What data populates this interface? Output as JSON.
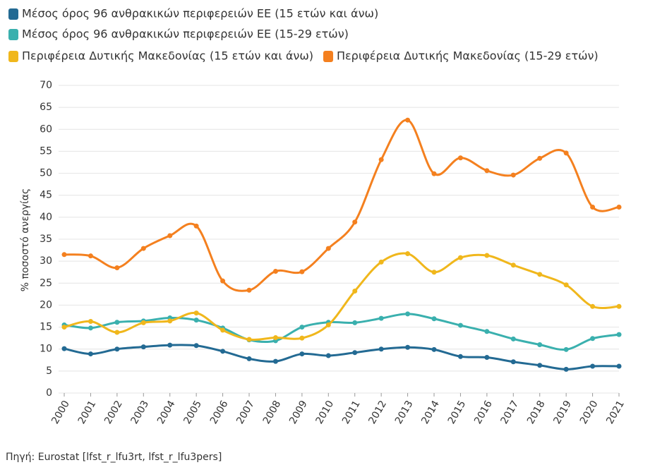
{
  "chart_data": {
    "type": "line",
    "y_label": "% ποσοστό ανεργίας",
    "source": "Πηγή: Eurostat [lfst_r_lfu3rt, lfst_r_lfu3pers]",
    "categories": [
      "2000",
      "2001",
      "2002",
      "2003",
      "2004",
      "2005",
      "2006",
      "2007",
      "2008",
      "2009",
      "2010",
      "2011",
      "2012",
      "2013",
      "2014",
      "2015",
      "2016",
      "2017",
      "2018",
      "2019",
      "2020",
      "2021"
    ],
    "series": [
      {
        "name": "Μέσος όρος 96 ανθρακικών περιφερειών ΕΕ (15 ετών και άνω)",
        "color": "#236a93",
        "values": [
          10.1,
          8.9,
          10.0,
          10.5,
          10.9,
          10.8,
          9.5,
          7.8,
          7.2,
          8.9,
          8.5,
          9.2,
          10.0,
          10.4,
          9.9,
          8.3,
          8.1,
          7.1,
          6.3,
          5.4,
          6.1,
          6.1
        ]
      },
      {
        "name": "Μέσος όρος 96 ανθρακικών περιφερειών ΕΕ (15-29 ετών)",
        "color": "#3ab0ae",
        "values": [
          15.5,
          14.8,
          16.1,
          16.4,
          17.1,
          16.6,
          14.8,
          12.1,
          11.9,
          15.0,
          16.1,
          16.0,
          17.0,
          18.0,
          16.9,
          15.4,
          14.0,
          12.3,
          11.0,
          9.9,
          12.4,
          13.3
        ]
      },
      {
        "name": "Περιφέρεια Δυτικής Μακεδονίας (15 ετών και άνω)",
        "color": "#f0b71c",
        "values": [
          15.0,
          16.3,
          13.8,
          16.0,
          16.4,
          18.2,
          14.3,
          12.2,
          12.6,
          12.5,
          15.5,
          23.2,
          29.8,
          31.7,
          27.5,
          30.8,
          31.3,
          29.1,
          27.0,
          24.6,
          19.7,
          19.7
        ]
      },
      {
        "name": "Περιφέρεια Δυτικής Μακεδονίας (15-29 ετών)",
        "color": "#f4801f",
        "values": [
          31.5,
          31.2,
          28.5,
          32.9,
          35.8,
          38.0,
          25.5,
          23.4,
          27.7,
          27.6,
          32.9,
          38.9,
          53.1,
          62.1,
          49.9,
          53.5,
          50.6,
          49.6,
          53.4,
          54.6,
          42.3,
          42.3
        ]
      }
    ],
    "ylim": [
      0,
      70
    ],
    "yticks": [
      0,
      5,
      10,
      15,
      20,
      25,
      30,
      35,
      40,
      45,
      50,
      55,
      60,
      65,
      70
    ],
    "grid": true
  }
}
